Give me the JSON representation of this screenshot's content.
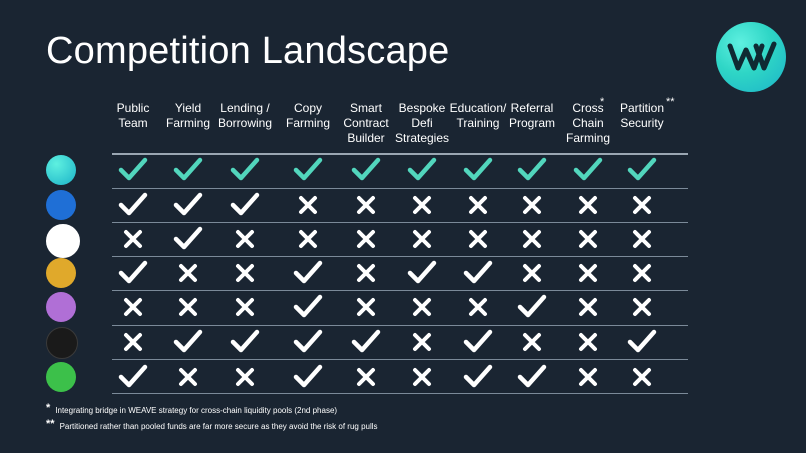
{
  "title": "Competition Landscape",
  "columns": [
    {
      "label": "Public\nTeam",
      "star": ""
    },
    {
      "label": "Yield\nFarming",
      "star": ""
    },
    {
      "label": "Lending /\nBorrowing",
      "star": ""
    },
    {
      "label": "Copy\nFarming",
      "star": ""
    },
    {
      "label": "Smart\nContract\nBuilder",
      "star": ""
    },
    {
      "label": "Bespoke\nDefi\nStrategies",
      "star": ""
    },
    {
      "label": "Education/\nTraining",
      "star": ""
    },
    {
      "label": "Referral\nProgram",
      "star": ""
    },
    {
      "label": "Cross\nChain\nFarming",
      "star": "*"
    },
    {
      "label": "Partition\nSecurity",
      "star": "**"
    }
  ],
  "rows": [
    {
      "logo": "weave-logo-icon",
      "color": "#2fd6c6",
      "highlight": true,
      "values": [
        true,
        true,
        true,
        true,
        true,
        true,
        true,
        true,
        true,
        true
      ]
    },
    {
      "logo": "yearn-logo-icon",
      "color": "#1f6fd6",
      "highlight": false,
      "values": [
        true,
        true,
        true,
        false,
        false,
        false,
        false,
        false,
        false,
        false
      ]
    },
    {
      "logo": "harvest-logo-icon",
      "color": "#ffffff",
      "highlight": false,
      "values": [
        false,
        true,
        false,
        false,
        false,
        false,
        false,
        false,
        false,
        false
      ]
    },
    {
      "logo": "donkey-logo-icon",
      "color": "#e0a92b",
      "highlight": false,
      "values": [
        true,
        false,
        false,
        true,
        false,
        true,
        true,
        false,
        false,
        false
      ]
    },
    {
      "logo": "pickle-logo-icon",
      "color": "#b06fd6",
      "highlight": false,
      "values": [
        false,
        false,
        false,
        true,
        false,
        false,
        false,
        true,
        false,
        false
      ]
    },
    {
      "logo": "cube-logo-icon",
      "color": "#1a1a1a",
      "highlight": false,
      "values": [
        false,
        true,
        true,
        true,
        true,
        false,
        true,
        false,
        false,
        true
      ]
    },
    {
      "logo": "e-logo-icon",
      "color": "#3cc04a",
      "highlight": false,
      "values": [
        true,
        false,
        false,
        true,
        false,
        false,
        true,
        true,
        false,
        false
      ]
    }
  ],
  "colors": {
    "accent_check": "#52d6bd",
    "check": "#ffffff",
    "cross": "#ffffff",
    "background": "#1a2532"
  },
  "footnotes": [
    {
      "mark": "*",
      "text": "Integrating bridge in WEAVE strategy for cross-chain liquidity pools (2nd phase)"
    },
    {
      "mark": "**",
      "text": "Partitioned rather than pooled funds are far more secure as they avoid the risk of rug pulls"
    }
  ]
}
